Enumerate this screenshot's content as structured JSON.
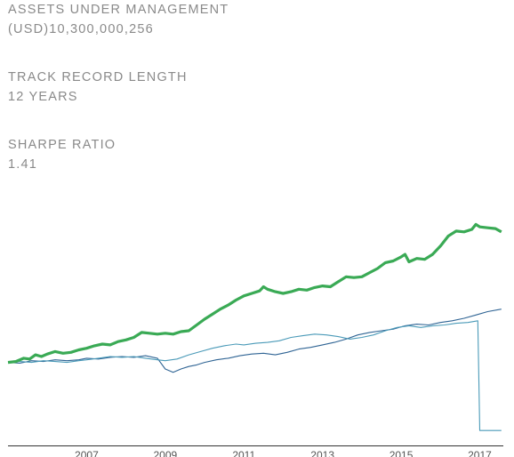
{
  "stats": [
    {
      "label": "ASSETS UNDER MANAGEMENT",
      "value": "(USD)10,300,000,256"
    },
    {
      "label": "TRACK RECORD LENGTH",
      "value": "12 YEARS"
    },
    {
      "label": "SHARPE RATIO",
      "value": "1.41"
    }
  ],
  "colors": {
    "fund": "#3aaa55",
    "benchmark_a": "#2f6494",
    "benchmark_b": "#4a9ab8",
    "axis": "#333333",
    "text": "#8a8a8a"
  },
  "chart_data": {
    "type": "line",
    "title": "",
    "xlabel": "",
    "ylabel": "",
    "xlim": [
      2005.0,
      2017.6
    ],
    "ylim": [
      0,
      2.9
    ],
    "grid": false,
    "x_ticks": [
      2007,
      2009,
      2011,
      2013,
      2015,
      2017
    ],
    "series": [
      {
        "color": "#3aaa55",
        "stroke": "thick",
        "points": [
          [
            2005.0,
            1.0
          ],
          [
            2005.2,
            1.01
          ],
          [
            2005.4,
            1.05
          ],
          [
            2005.55,
            1.04
          ],
          [
            2005.7,
            1.09
          ],
          [
            2005.85,
            1.07
          ],
          [
            2006.0,
            1.1
          ],
          [
            2006.2,
            1.13
          ],
          [
            2006.4,
            1.11
          ],
          [
            2006.6,
            1.12
          ],
          [
            2006.8,
            1.15
          ],
          [
            2007.0,
            1.17
          ],
          [
            2007.2,
            1.2
          ],
          [
            2007.4,
            1.22
          ],
          [
            2007.6,
            1.21
          ],
          [
            2007.8,
            1.25
          ],
          [
            2008.0,
            1.27
          ],
          [
            2008.2,
            1.3
          ],
          [
            2008.4,
            1.36
          ],
          [
            2008.6,
            1.35
          ],
          [
            2008.8,
            1.34
          ],
          [
            2009.0,
            1.35
          ],
          [
            2009.2,
            1.34
          ],
          [
            2009.4,
            1.37
          ],
          [
            2009.6,
            1.38
          ],
          [
            2009.8,
            1.45
          ],
          [
            2010.0,
            1.52
          ],
          [
            2010.2,
            1.58
          ],
          [
            2010.4,
            1.64
          ],
          [
            2010.6,
            1.69
          ],
          [
            2010.8,
            1.75
          ],
          [
            2011.0,
            1.8
          ],
          [
            2011.2,
            1.83
          ],
          [
            2011.4,
            1.86
          ],
          [
            2011.5,
            1.91
          ],
          [
            2011.6,
            1.88
          ],
          [
            2011.8,
            1.85
          ],
          [
            2012.0,
            1.83
          ],
          [
            2012.2,
            1.85
          ],
          [
            2012.4,
            1.88
          ],
          [
            2012.6,
            1.87
          ],
          [
            2012.8,
            1.9
          ],
          [
            2013.0,
            1.92
          ],
          [
            2013.2,
            1.91
          ],
          [
            2013.4,
            1.97
          ],
          [
            2013.6,
            2.03
          ],
          [
            2013.8,
            2.02
          ],
          [
            2014.0,
            2.03
          ],
          [
            2014.2,
            2.08
          ],
          [
            2014.4,
            2.13
          ],
          [
            2014.6,
            2.2
          ],
          [
            2014.8,
            2.22
          ],
          [
            2015.0,
            2.27
          ],
          [
            2015.1,
            2.3
          ],
          [
            2015.2,
            2.21
          ],
          [
            2015.4,
            2.25
          ],
          [
            2015.6,
            2.24
          ],
          [
            2015.8,
            2.3
          ],
          [
            2016.0,
            2.4
          ],
          [
            2016.2,
            2.52
          ],
          [
            2016.4,
            2.58
          ],
          [
            2016.6,
            2.57
          ],
          [
            2016.8,
            2.6
          ],
          [
            2016.9,
            2.66
          ],
          [
            2017.0,
            2.63
          ],
          [
            2017.2,
            2.62
          ],
          [
            2017.4,
            2.61
          ],
          [
            2017.55,
            2.57
          ]
        ]
      },
      {
        "color": "#2f6494",
        "stroke": "thin",
        "points": [
          [
            2005.0,
            1.0
          ],
          [
            2005.3,
            0.99
          ],
          [
            2005.6,
            1.02
          ],
          [
            2005.9,
            1.01
          ],
          [
            2006.2,
            1.03
          ],
          [
            2006.5,
            1.02
          ],
          [
            2006.8,
            1.03
          ],
          [
            2007.0,
            1.05
          ],
          [
            2007.3,
            1.04
          ],
          [
            2007.6,
            1.06
          ],
          [
            2007.9,
            1.07
          ],
          [
            2008.2,
            1.06
          ],
          [
            2008.5,
            1.08
          ],
          [
            2008.8,
            1.05
          ],
          [
            2009.0,
            0.92
          ],
          [
            2009.2,
            0.88
          ],
          [
            2009.4,
            0.92
          ],
          [
            2009.6,
            0.95
          ],
          [
            2009.8,
            0.97
          ],
          [
            2010.0,
            1.0
          ],
          [
            2010.3,
            1.03
          ],
          [
            2010.6,
            1.05
          ],
          [
            2010.9,
            1.08
          ],
          [
            2011.2,
            1.1
          ],
          [
            2011.5,
            1.11
          ],
          [
            2011.8,
            1.09
          ],
          [
            2012.1,
            1.12
          ],
          [
            2012.4,
            1.16
          ],
          [
            2012.7,
            1.18
          ],
          [
            2013.0,
            1.21
          ],
          [
            2013.3,
            1.24
          ],
          [
            2013.6,
            1.28
          ],
          [
            2013.9,
            1.33
          ],
          [
            2014.2,
            1.36
          ],
          [
            2014.5,
            1.38
          ],
          [
            2014.8,
            1.4
          ],
          [
            2015.1,
            1.44
          ],
          [
            2015.4,
            1.46
          ],
          [
            2015.7,
            1.45
          ],
          [
            2016.0,
            1.48
          ],
          [
            2016.3,
            1.5
          ],
          [
            2016.6,
            1.53
          ],
          [
            2016.9,
            1.57
          ],
          [
            2017.2,
            1.61
          ],
          [
            2017.55,
            1.64
          ]
        ]
      },
      {
        "color": "#4a9ab8",
        "stroke": "thin",
        "points": [
          [
            2005.0,
            1.0
          ],
          [
            2005.3,
            1.01
          ],
          [
            2005.6,
            1.0
          ],
          [
            2005.9,
            1.02
          ],
          [
            2006.2,
            1.01
          ],
          [
            2006.5,
            1.0
          ],
          [
            2006.8,
            1.02
          ],
          [
            2007.0,
            1.03
          ],
          [
            2007.3,
            1.05
          ],
          [
            2007.6,
            1.07
          ],
          [
            2007.9,
            1.06
          ],
          [
            2008.2,
            1.07
          ],
          [
            2008.5,
            1.05
          ],
          [
            2008.8,
            1.03
          ],
          [
            2009.0,
            1.02
          ],
          [
            2009.3,
            1.04
          ],
          [
            2009.6,
            1.09
          ],
          [
            2009.9,
            1.13
          ],
          [
            2010.2,
            1.17
          ],
          [
            2010.5,
            1.2
          ],
          [
            2010.8,
            1.22
          ],
          [
            2011.0,
            1.21
          ],
          [
            2011.3,
            1.23
          ],
          [
            2011.6,
            1.24
          ],
          [
            2011.9,
            1.26
          ],
          [
            2012.2,
            1.3
          ],
          [
            2012.5,
            1.32
          ],
          [
            2012.8,
            1.34
          ],
          [
            2013.1,
            1.33
          ],
          [
            2013.4,
            1.31
          ],
          [
            2013.7,
            1.28
          ],
          [
            2014.0,
            1.3
          ],
          [
            2014.3,
            1.33
          ],
          [
            2014.6,
            1.38
          ],
          [
            2014.9,
            1.42
          ],
          [
            2015.2,
            1.44
          ],
          [
            2015.5,
            1.42
          ],
          [
            2015.8,
            1.44
          ],
          [
            2016.1,
            1.45
          ],
          [
            2016.4,
            1.47
          ],
          [
            2016.7,
            1.48
          ],
          [
            2016.95,
            1.5
          ],
          [
            2017.0,
            0.18
          ],
          [
            2017.3,
            0.18
          ],
          [
            2017.55,
            0.18
          ]
        ]
      }
    ]
  }
}
